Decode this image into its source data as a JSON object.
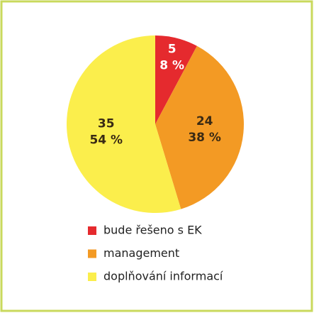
{
  "chart_data": {
    "type": "pie",
    "categories": [
      "bude řešeno s EK",
      "management",
      "doplňování informací"
    ],
    "values": [
      5,
      24,
      35
    ],
    "percents": [
      8,
      38,
      54
    ],
    "percent_labels": [
      "8 %",
      "38 %",
      "54 %"
    ],
    "colors": [
      "#e52a2e",
      "#f39a24",
      "#fbee4c"
    ],
    "legend": "bottom"
  }
}
